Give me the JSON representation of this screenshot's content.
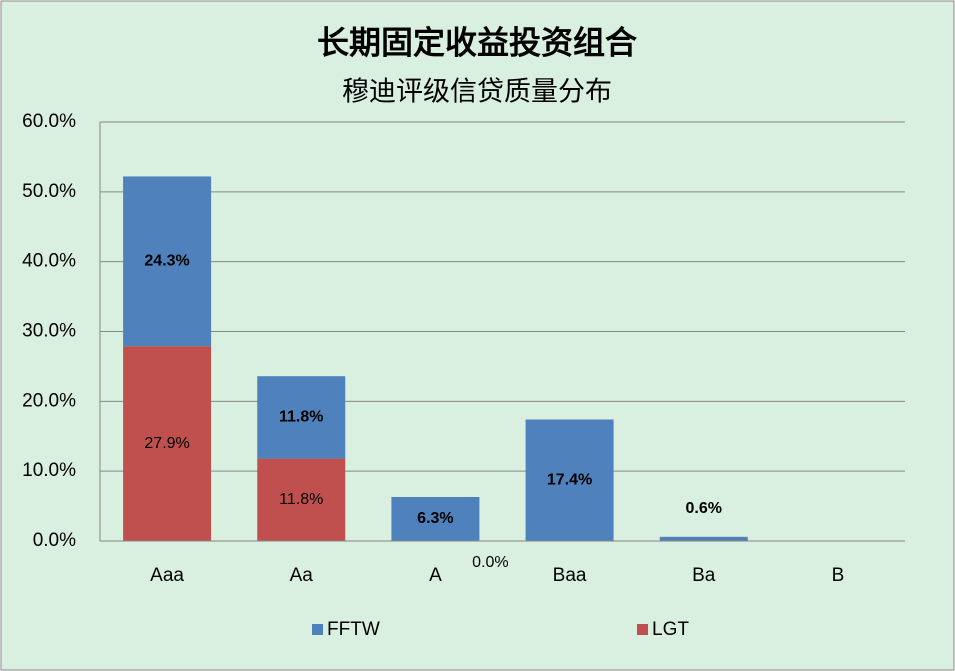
{
  "chart_data": {
    "type": "stacked-bar",
    "title": "长期固定收益投资组合",
    "subtitle": "穆迪评级信贷质量分布",
    "categories": [
      "Aaa",
      "Aa",
      "A",
      "Baa",
      "Ba",
      "B"
    ],
    "series": [
      {
        "name": "LGT",
        "color": "#c0504d",
        "values": [
          27.9,
          11.8,
          0.0,
          null,
          null,
          null
        ],
        "value_labels": [
          "27.9%",
          "11.8%",
          "0.0%",
          null,
          null,
          null
        ]
      },
      {
        "name": "FFTW",
        "color": "#4f81bd",
        "values": [
          24.3,
          11.8,
          6.3,
          17.4,
          0.6,
          null
        ],
        "value_labels": [
          "24.3%",
          "11.8%",
          "6.3%",
          "17.4%",
          "0.6%",
          null
        ]
      }
    ],
    "ylim": [
      0,
      60
    ],
    "yticks": [
      {
        "value": 0,
        "label": "0.0%"
      },
      {
        "value": 10,
        "label": "10.0%"
      },
      {
        "value": 20,
        "label": "20.0%"
      },
      {
        "value": 30,
        "label": "30.0%"
      },
      {
        "value": 40,
        "label": "40.0%"
      },
      {
        "value": 50,
        "label": "50.0%"
      },
      {
        "value": 60,
        "label": "60.0%"
      }
    ],
    "grid": true,
    "legend": "bottom"
  }
}
